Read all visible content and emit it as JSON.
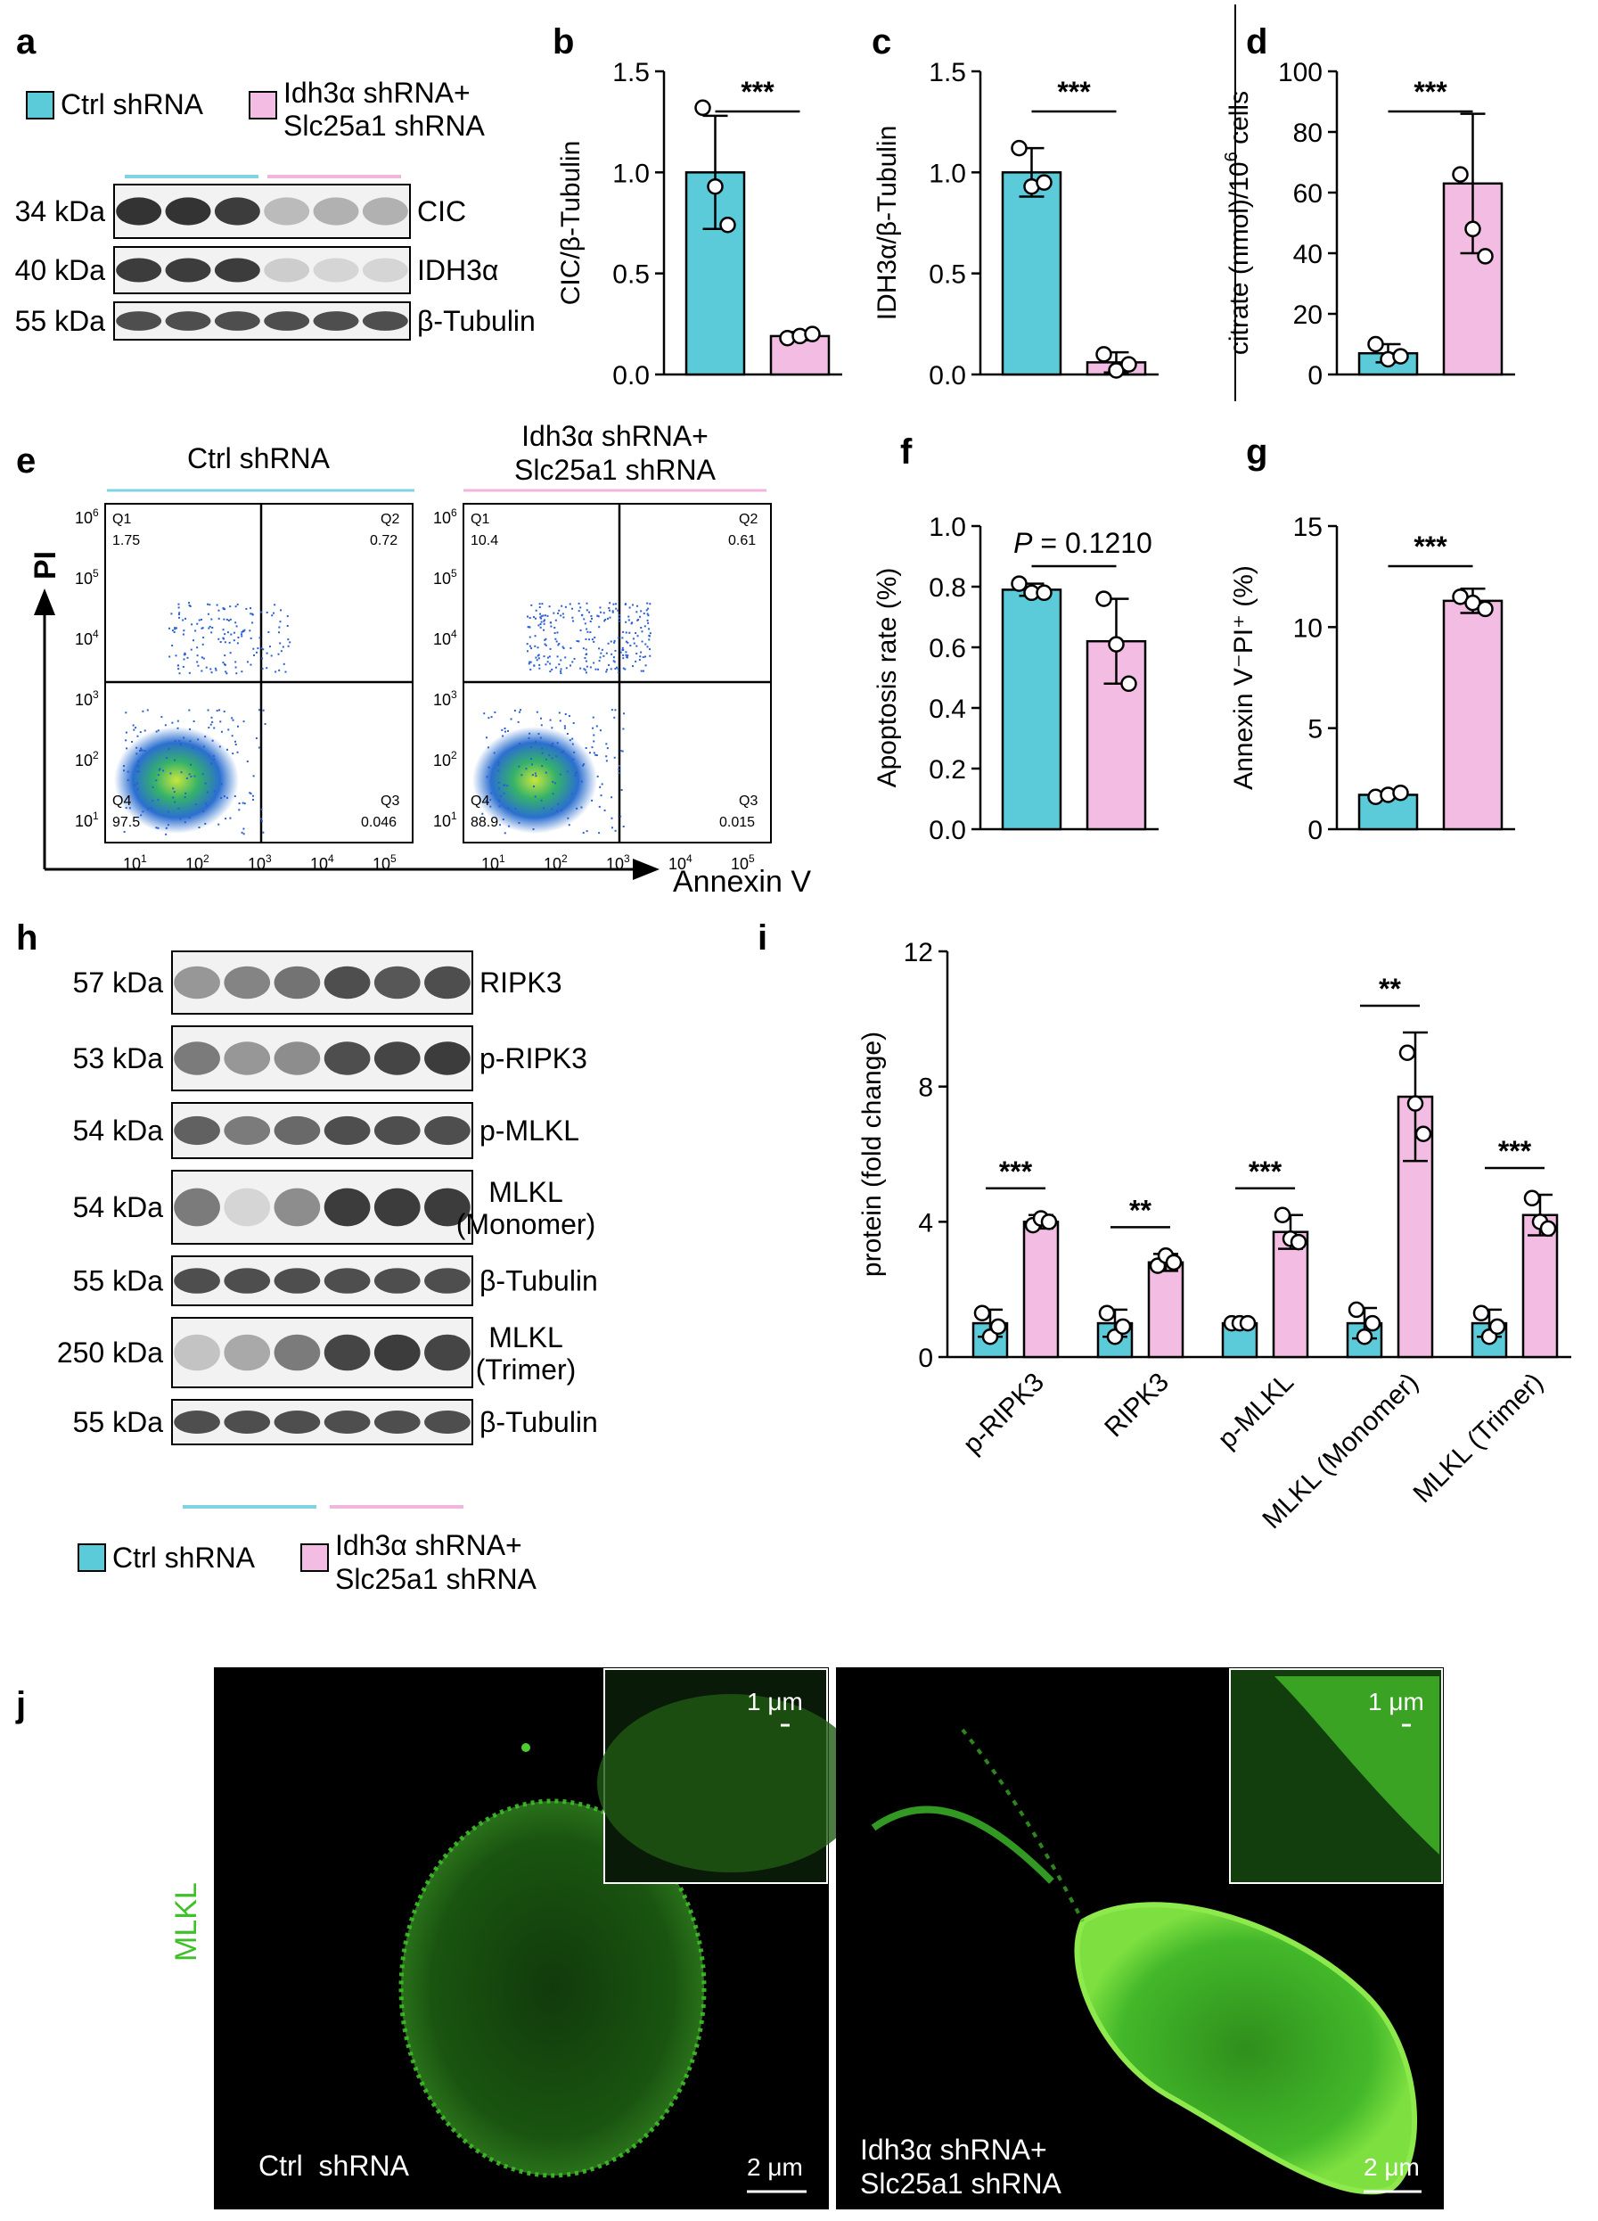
{
  "colors": {
    "ctrl": "#5bcbd9",
    "kd": "#f3bde3",
    "ctrl_line": "#7fd3e3",
    "kd_line": "#f0b6de",
    "axis": "#000000",
    "fluor": "#3fbf2a"
  },
  "legend": {
    "ctrl": "Ctrl shRNA",
    "kd_line1": "Idh3α shRNA+",
    "kd_line2": "Slc25a1 shRNA"
  },
  "panel_letters": {
    "a": "a",
    "b": "b",
    "c": "c",
    "d": "d",
    "e": "e",
    "f": "f",
    "g": "g",
    "h": "h",
    "i": "i",
    "j": "j"
  },
  "blot_a": {
    "rows": [
      {
        "kda": "34 kDa",
        "name": "CIC",
        "intensities": [
          1,
          1,
          0.95,
          0.25,
          0.3,
          0.3
        ]
      },
      {
        "kda": "40 kDa",
        "name": "IDH3α",
        "intensities": [
          0.95,
          0.95,
          0.95,
          0.15,
          0.1,
          0.1
        ]
      },
      {
        "kda": "55 kDa",
        "name": "β-Tubulin",
        "intensities": [
          0.85,
          0.85,
          0.85,
          0.85,
          0.85,
          0.85
        ]
      }
    ]
  },
  "blot_h": {
    "rows": [
      {
        "kda": "57 kDa",
        "name": "RIPK3",
        "name2": "",
        "intensities": [
          0.45,
          0.55,
          0.65,
          0.85,
          0.8,
          0.85
        ]
      },
      {
        "kda": "53 kDa",
        "name": "p-RIPK3",
        "name2": "",
        "intensities": [
          0.6,
          0.45,
          0.5,
          0.85,
          0.9,
          0.95
        ]
      },
      {
        "kda": "54 kDa",
        "name": "p-MLKL",
        "name2": "",
        "intensities": [
          0.75,
          0.6,
          0.7,
          0.85,
          0.85,
          0.85
        ]
      },
      {
        "kda": "54 kDa",
        "name": "MLKL",
        "name2": "(Monomer)",
        "intensities": [
          0.6,
          0.1,
          0.5,
          0.95,
          0.95,
          0.95
        ]
      },
      {
        "kda": "55 kDa",
        "name": "β-Tubulin",
        "name2": "",
        "intensities": [
          0.85,
          0.85,
          0.85,
          0.85,
          0.85,
          0.85
        ]
      },
      {
        "kda": "250 kDa",
        "name": "MLKL",
        "name2": "(Trimer)",
        "intensities": [
          0.2,
          0.35,
          0.6,
          0.9,
          0.95,
          0.9
        ]
      },
      {
        "kda": "55 kDa",
        "name": "β-Tubulin",
        "name2": "",
        "intensities": [
          0.85,
          0.85,
          0.85,
          0.85,
          0.85,
          0.85
        ]
      }
    ]
  },
  "chart_data": [
    {
      "id": "b",
      "type": "bar",
      "ylabel": "CIC/β-Tubulin",
      "ylim": [
        0,
        1.5
      ],
      "ticks": [
        "0.0",
        "0.5",
        "1.0",
        "1.5"
      ],
      "values": [
        1.0,
        0.19
      ],
      "sd": [
        0.28,
        0.02
      ],
      "points": [
        [
          1.32,
          0.93,
          0.74
        ],
        [
          0.18,
          0.19,
          0.2
        ]
      ],
      "sig": "***"
    },
    {
      "id": "c",
      "type": "bar",
      "ylabel": "IDH3α/β-Tubulin",
      "ylim": [
        0,
        1.5
      ],
      "ticks": [
        "0.0",
        "0.5",
        "1.0",
        "1.5"
      ],
      "values": [
        1.0,
        0.06
      ],
      "sd": [
        0.12,
        0.05
      ],
      "points": [
        [
          1.12,
          0.93,
          0.95
        ],
        [
          0.1,
          0.02,
          0.05
        ]
      ],
      "sig": "***"
    },
    {
      "id": "d",
      "type": "bar",
      "ylabel": "citrate (nmol)/10^6 cells",
      "ylim": [
        0,
        100
      ],
      "ticks": [
        "0",
        "20",
        "40",
        "60",
        "80",
        "100"
      ],
      "values": [
        7,
        63
      ],
      "sd": [
        3,
        23
      ],
      "points": [
        [
          10,
          5,
          6
        ],
        [
          66,
          48,
          39
        ]
      ],
      "sig": "***"
    },
    {
      "id": "f",
      "type": "bar",
      "ylabel": "Apoptosis rate (%)",
      "ylim": [
        0,
        1.0
      ],
      "ticks": [
        "0.0",
        "0.2",
        "0.4",
        "0.6",
        "0.8",
        "1.0"
      ],
      "values": [
        0.79,
        0.62
      ],
      "sd": [
        0.02,
        0.14
      ],
      "points": [
        [
          0.81,
          0.78,
          0.78
        ],
        [
          0.76,
          0.61,
          0.48
        ]
      ],
      "sig": "P = 0.1210"
    },
    {
      "id": "g",
      "type": "bar",
      "ylabel": "Annexin V⁻PI⁺ (%)",
      "ylim": [
        0,
        15
      ],
      "ticks": [
        "0",
        "5",
        "10",
        "15"
      ],
      "values": [
        1.7,
        11.3
      ],
      "sd": [
        0.1,
        0.6
      ],
      "points": [
        [
          1.6,
          1.7,
          1.8
        ],
        [
          11.5,
          11.2,
          10.9
        ]
      ],
      "sig": "***"
    },
    {
      "id": "i",
      "type": "bar",
      "ylabel": "protein (fold change)",
      "ylim": [
        0,
        12
      ],
      "ticks": [
        "0",
        "4",
        "8",
        "12"
      ],
      "categories": [
        "p-RIPK3",
        "RIPK3",
        "p-MLKL",
        "MLKL (Monomer)",
        "MLKL (Trimer)"
      ],
      "ctrl": [
        1.0,
        1.0,
        1.0,
        1.0,
        1.0
      ],
      "ctrl_sd": [
        0.4,
        0.4,
        0.05,
        0.45,
        0.4
      ],
      "ctrl_points": [
        [
          1.3,
          0.6,
          0.9
        ],
        [
          1.3,
          0.6,
          0.9
        ],
        [
          1.0,
          1.0,
          1.0
        ],
        [
          1.4,
          0.6,
          1.0
        ],
        [
          1.3,
          0.6,
          0.9
        ]
      ],
      "kd": [
        4.0,
        2.8,
        3.7,
        7.7,
        4.2
      ],
      "kd_sd": [
        0.2,
        0.25,
        0.5,
        1.9,
        0.6
      ],
      "kd_points": [
        [
          3.9,
          4.1,
          4.0
        ],
        [
          2.7,
          3.0,
          2.8
        ],
        [
          4.2,
          3.5,
          3.4
        ],
        [
          9.0,
          7.5,
          6.6
        ],
        [
          4.7,
          4.0,
          3.8
        ]
      ],
      "sig": [
        "***",
        "**",
        "***",
        "**",
        "***"
      ]
    }
  ],
  "flow": {
    "title_ctrl": "Ctrl shRNA",
    "title_kd1": "Idh3α shRNA+",
    "title_kd2": "Slc25a1 shRNA",
    "ylabel": "PI",
    "xlabel": "Annexin V",
    "ctrl": {
      "Q1": "Q1",
      "Q1v": "1.75",
      "Q2": "Q2",
      "Q2v": "0.72",
      "Q3": "Q3",
      "Q3v": "0.046",
      "Q4": "Q4",
      "Q4v": "97.5"
    },
    "kd": {
      "Q1": "Q1",
      "Q1v": "10.4",
      "Q2": "Q2",
      "Q2v": "0.61",
      "Q3": "Q3",
      "Q3v": "0.015",
      "Q4": "Q4",
      "Q4v": "88.9"
    },
    "xticks": [
      "10",
      "10",
      "10",
      "10",
      "10"
    ],
    "xexp": [
      "1",
      "2",
      "3",
      "4",
      "5"
    ],
    "yticks": [
      "10",
      "10",
      "10",
      "10",
      "10",
      "10"
    ],
    "yexp": [
      "1",
      "2",
      "3",
      "4",
      "5",
      "6"
    ]
  },
  "micrograph": {
    "stain": "MLKL",
    "scale_inset": "1 μm",
    "scale_main": "2 μm",
    "ctrl_label": "Ctrl  shRNA",
    "kd_label1": "Idh3α shRNA+",
    "kd_label2": "Slc25a1 shRNA"
  }
}
